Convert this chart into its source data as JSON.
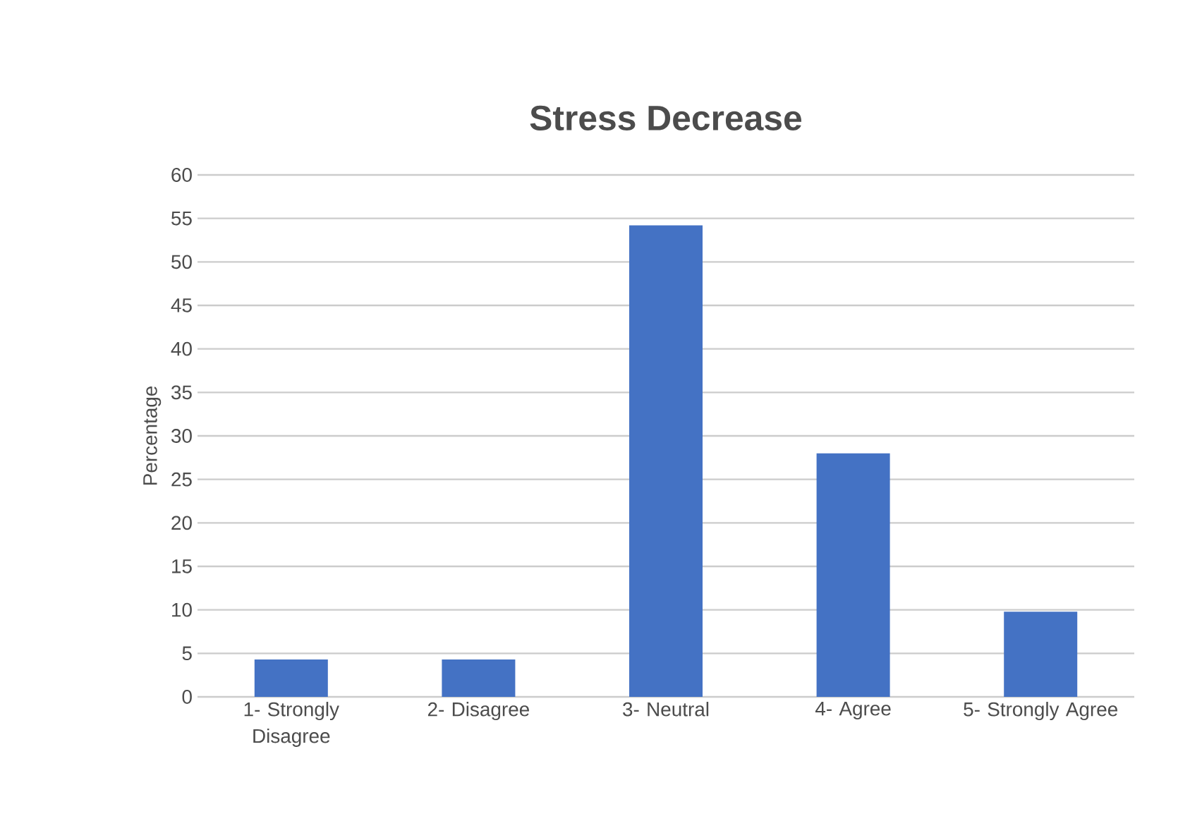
{
  "chart_data": {
    "type": "bar",
    "title": "Stress Decrease",
    "ylabel": "Percentage",
    "categories": [
      "1- Strongly Disagree",
      "2- Disagree",
      "3- Neutral",
      "4- Agree",
      "5- Strongly Agree"
    ],
    "values": [
      4.3,
      4.3,
      54.2,
      28.0,
      9.8
    ],
    "color": "#4472c4",
    "ylim": [
      0,
      60
    ],
    "yticks": [
      0,
      5,
      10,
      15,
      20,
      25,
      30,
      35,
      40,
      45,
      50,
      55,
      60
    ],
    "grid": "y"
  }
}
